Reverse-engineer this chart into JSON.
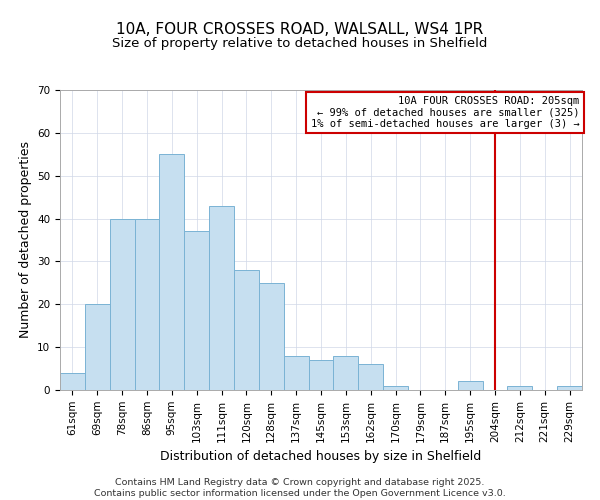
{
  "title": "10A, FOUR CROSSES ROAD, WALSALL, WS4 1PR",
  "subtitle": "Size of property relative to detached houses in Shelfield",
  "xlabel": "Distribution of detached houses by size in Shelfield",
  "ylabel": "Number of detached properties",
  "bar_labels": [
    "61sqm",
    "69sqm",
    "78sqm",
    "86sqm",
    "95sqm",
    "103sqm",
    "111sqm",
    "120sqm",
    "128sqm",
    "137sqm",
    "145sqm",
    "153sqm",
    "162sqm",
    "170sqm",
    "179sqm",
    "187sqm",
    "195sqm",
    "204sqm",
    "212sqm",
    "221sqm",
    "229sqm"
  ],
  "bar_heights": [
    4,
    20,
    40,
    40,
    55,
    37,
    43,
    28,
    25,
    8,
    7,
    8,
    6,
    1,
    0,
    0,
    2,
    0,
    1,
    0,
    1
  ],
  "bar_color": "#c6dff0",
  "bar_edge_color": "#7ab3d4",
  "vline_x": 17,
  "vline_color": "#cc0000",
  "ylim": [
    0,
    70
  ],
  "yticks": [
    0,
    10,
    20,
    30,
    40,
    50,
    60,
    70
  ],
  "legend_title": "10A FOUR CROSSES ROAD: 205sqm",
  "legend_line1": "← 99% of detached houses are smaller (325)",
  "legend_line2": "1% of semi-detached houses are larger (3) →",
  "legend_box_facecolor": "#ffffff",
  "legend_box_edgecolor": "#cc0000",
  "footer_line1": "Contains HM Land Registry data © Crown copyright and database right 2025.",
  "footer_line2": "Contains public sector information licensed under the Open Government Licence v3.0.",
  "title_fontsize": 11,
  "subtitle_fontsize": 9.5,
  "axis_label_fontsize": 9,
  "tick_fontsize": 7.5,
  "legend_fontsize": 7.5,
  "footer_fontsize": 6.8,
  "bg_color": "#ffffff",
  "grid_color": "#d0d8e8"
}
